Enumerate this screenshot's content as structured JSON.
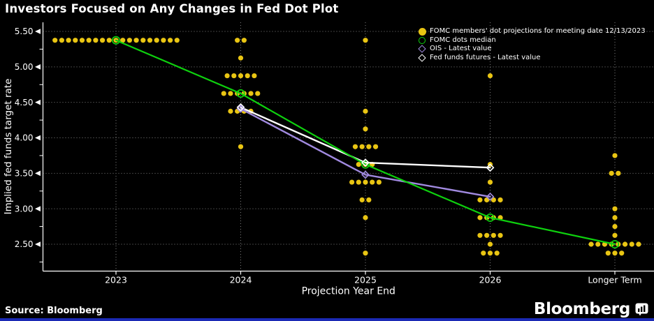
{
  "header": {
    "title": "Investors Focused on Any Changes in Fed Dot Plot"
  },
  "footer": {
    "source": "Source: Bloomberg",
    "brand": "Bloomberg"
  },
  "colors": {
    "background": "#000000",
    "text": "#ffffff",
    "grid": "#aaaaaa",
    "axis": "#ffffff",
    "dots": "#e9c513",
    "median": "#0ed10e",
    "ois": "#a18ae0",
    "futures": "#ffffff",
    "accent_bar": "#1b2ab5"
  },
  "chart_data": {
    "type": "scatter",
    "title": "Investors Focused on Any Changes in Fed Dot Plot",
    "xlabel": "Projection Year End",
    "ylabel": "Implied fed funds target rate",
    "categories": [
      "2023",
      "2024",
      "2025",
      "2026",
      "Longer Term"
    ],
    "ylim": [
      2.1,
      5.63
    ],
    "yticks_major": [
      5.5,
      5.0,
      4.5,
      4.0,
      3.5,
      3.0,
      2.5
    ],
    "yticks_minor": [
      5.25,
      4.75,
      4.25,
      3.75,
      3.25,
      2.75,
      2.25
    ],
    "grid": "dotted",
    "legend_position": "top-right",
    "legend": [
      {
        "label": "FOMC members' dot projections for meeting date 12/13/2023",
        "marker": "filled-circle",
        "color": "#e9c513"
      },
      {
        "label": "FOMC dots median",
        "marker": "open-circle",
        "color": "#0ed10e"
      },
      {
        "label": "OIS - Latest value",
        "marker": "open-diamond",
        "color": "#a18ae0"
      },
      {
        "label": "Fed funds futures - Latest value",
        "marker": "open-diamond",
        "color": "#ffffff"
      }
    ],
    "dots": [
      {
        "category": "2023",
        "value": 5.375,
        "count": 19
      },
      {
        "category": "2024",
        "value": 5.375,
        "count": 2
      },
      {
        "category": "2024",
        "value": 5.125,
        "count": 1
      },
      {
        "category": "2024",
        "value": 4.875,
        "count": 5
      },
      {
        "category": "2024",
        "value": 4.625,
        "count": 6
      },
      {
        "category": "2024",
        "value": 4.375,
        "count": 4
      },
      {
        "category": "2024",
        "value": 3.875,
        "count": 1
      },
      {
        "category": "2025",
        "value": 5.375,
        "count": 1
      },
      {
        "category": "2025",
        "value": 4.375,
        "count": 1
      },
      {
        "category": "2025",
        "value": 4.125,
        "count": 1
      },
      {
        "category": "2025",
        "value": 3.875,
        "count": 4
      },
      {
        "category": "2025",
        "value": 3.625,
        "count": 3
      },
      {
        "category": "2025",
        "value": 3.375,
        "count": 5
      },
      {
        "category": "2025",
        "value": 3.125,
        "count": 2
      },
      {
        "category": "2025",
        "value": 2.875,
        "count": 1
      },
      {
        "category": "2025",
        "value": 2.375,
        "count": 1
      },
      {
        "category": "2026",
        "value": 4.875,
        "count": 1
      },
      {
        "category": "2026",
        "value": 3.625,
        "count": 1
      },
      {
        "category": "2026",
        "value": 3.375,
        "count": 1
      },
      {
        "category": "2026",
        "value": 3.125,
        "count": 4
      },
      {
        "category": "2026",
        "value": 2.875,
        "count": 4
      },
      {
        "category": "2026",
        "value": 2.625,
        "count": 4
      },
      {
        "category": "2026",
        "value": 2.5,
        "count": 1
      },
      {
        "category": "2026",
        "value": 2.375,
        "count": 3
      },
      {
        "category": "Longer Term",
        "value": 3.75,
        "count": 1
      },
      {
        "category": "Longer Term",
        "value": 3.5,
        "count": 2
      },
      {
        "category": "Longer Term",
        "value": 3.0,
        "count": 1
      },
      {
        "category": "Longer Term",
        "value": 2.875,
        "count": 1
      },
      {
        "category": "Longer Term",
        "value": 2.75,
        "count": 1
      },
      {
        "category": "Longer Term",
        "value": 2.625,
        "count": 1
      },
      {
        "category": "Longer Term",
        "value": 2.5,
        "count": 8
      },
      {
        "category": "Longer Term",
        "value": 2.375,
        "count": 3
      }
    ],
    "lines": [
      {
        "name": "OIS - Latest value",
        "color": "#a18ae0",
        "marker": "open-diamond",
        "width": 2.4,
        "points": [
          {
            "category": "2024",
            "value": 4.41
          },
          {
            "category": "2025",
            "value": 3.48
          },
          {
            "category": "2026",
            "value": 3.17
          }
        ]
      },
      {
        "name": "Fed funds futures - Latest value",
        "color": "#ffffff",
        "marker": "open-diamond",
        "width": 2.4,
        "points": [
          {
            "category": "2024",
            "value": 4.43
          },
          {
            "category": "2025",
            "value": 3.65
          },
          {
            "category": "2026",
            "value": 3.58
          }
        ]
      },
      {
        "name": "FOMC dots median",
        "color": "#0ed10e",
        "marker": "open-circle",
        "width": 2.2,
        "points": [
          {
            "category": "2023",
            "value": 5.375
          },
          {
            "category": "2024",
            "value": 4.625
          },
          {
            "category": "2025",
            "value": 3.625
          },
          {
            "category": "2026",
            "value": 2.875
          },
          {
            "category": "Longer Term",
            "value": 2.5
          }
        ]
      }
    ]
  }
}
